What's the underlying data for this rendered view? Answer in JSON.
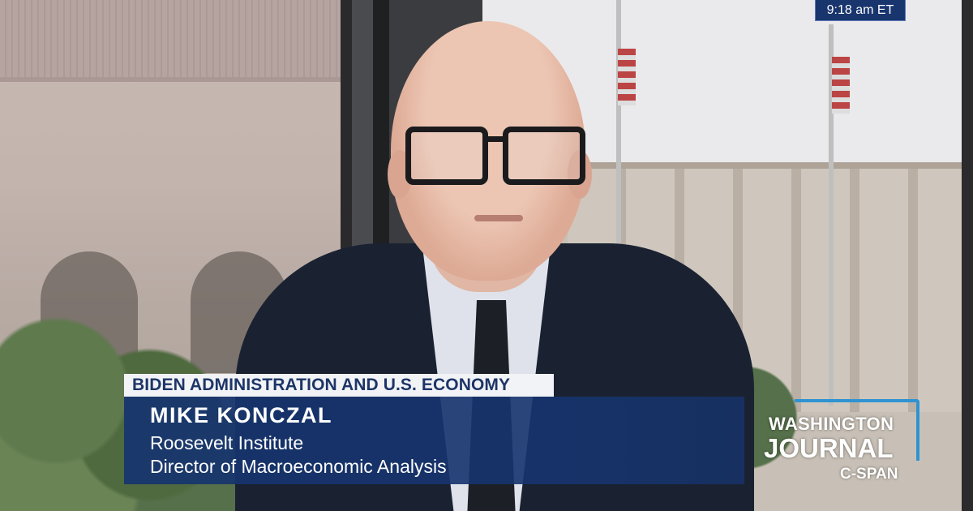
{
  "broadcast": {
    "clock": "9:18 am ET"
  },
  "lower_third": {
    "topic": "BIDEN ADMINISTRATION AND U.S. ECONOMY",
    "guest_name": "MIKE KONCZAL",
    "guest_organization": "Roosevelt Institute",
    "guest_title": "Director of Macroeconomic Analysis"
  },
  "logo": {
    "line1": "WASHINGTON",
    "line2": "JOURNAL",
    "network": "C-SPAN"
  },
  "colors": {
    "banner_blue": "#16346e",
    "topic_text": "#1d3567",
    "logo_accent": "#2f93d1"
  }
}
